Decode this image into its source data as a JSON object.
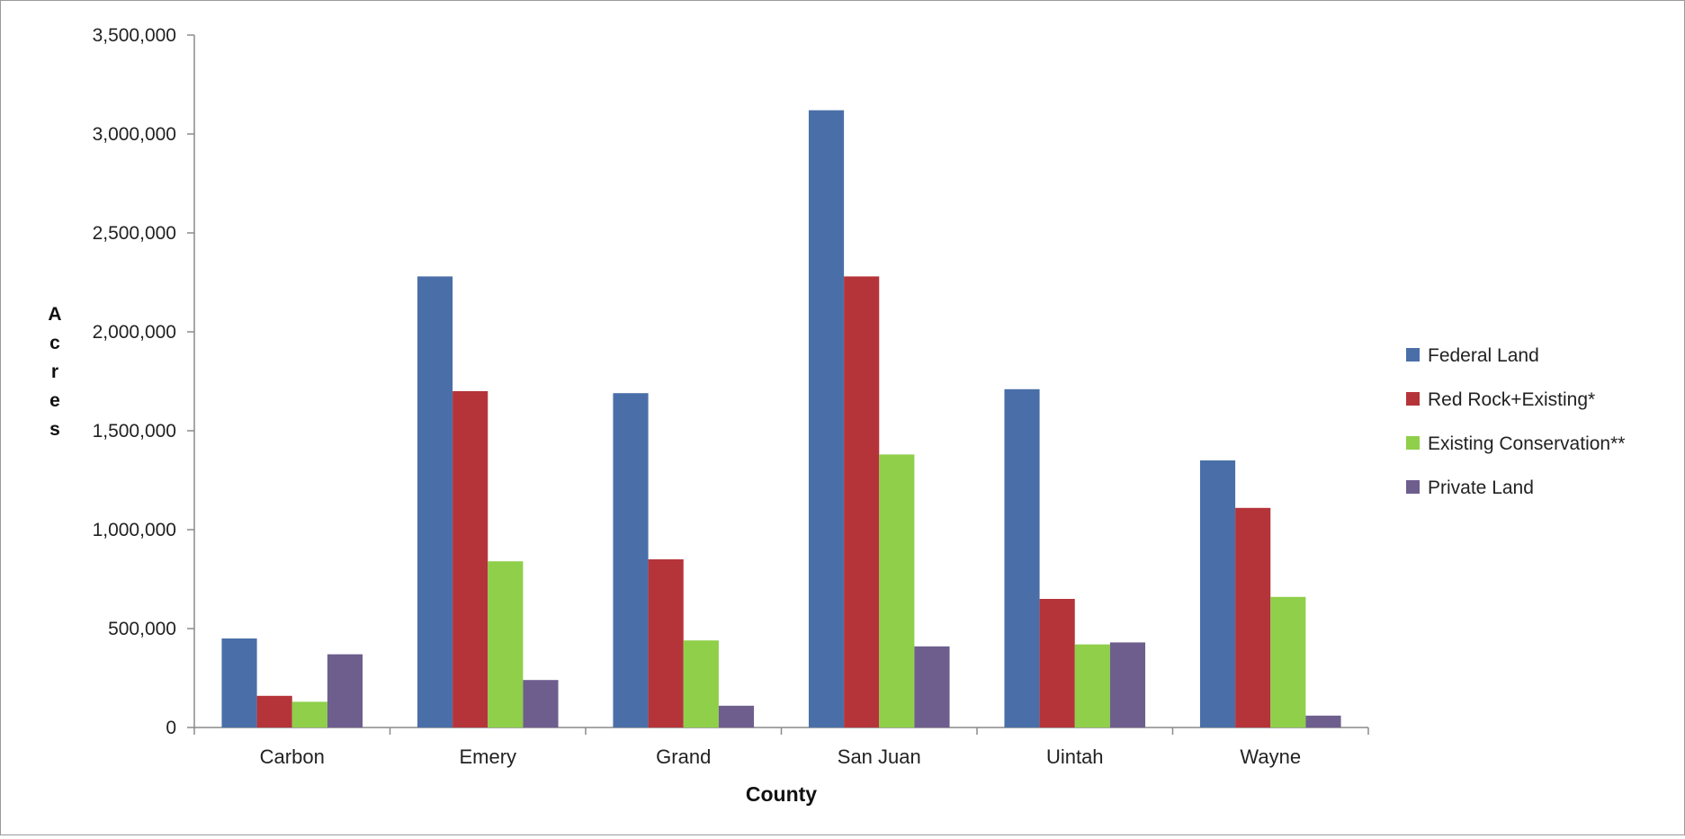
{
  "chart_data": {
    "type": "bar",
    "title": "",
    "xlabel": "County",
    "ylabel": "Acres",
    "ylim": [
      0,
      3500000
    ],
    "yticks": [
      0,
      500000,
      1000000,
      1500000,
      2000000,
      2500000,
      3000000,
      3500000
    ],
    "ytick_labels": [
      "0",
      "500,000",
      "1,000,000",
      "1,500,000",
      "2,000,000",
      "2,500,000",
      "3,000,000",
      "3,500,000"
    ],
    "grid": false,
    "legend_position": "right",
    "categories": [
      "Carbon",
      "Emery",
      "Grand",
      "San Juan",
      "Uintah",
      "Wayne"
    ],
    "series": [
      {
        "name": "Federal Land",
        "color": "#4a6fa8",
        "values": [
          450000,
          2280000,
          1690000,
          3120000,
          1710000,
          1350000
        ]
      },
      {
        "name": "Red Rock+Existing*",
        "color": "#b5343a",
        "values": [
          160000,
          1700000,
          850000,
          2280000,
          650000,
          1110000
        ]
      },
      {
        "name": "Existing Conservation**",
        "color": "#8fcf4a",
        "values": [
          130000,
          840000,
          440000,
          1380000,
          420000,
          660000
        ]
      },
      {
        "name": "Private Land",
        "color": "#6e5e8e",
        "values": [
          370000,
          240000,
          110000,
          410000,
          430000,
          60000
        ]
      }
    ]
  }
}
